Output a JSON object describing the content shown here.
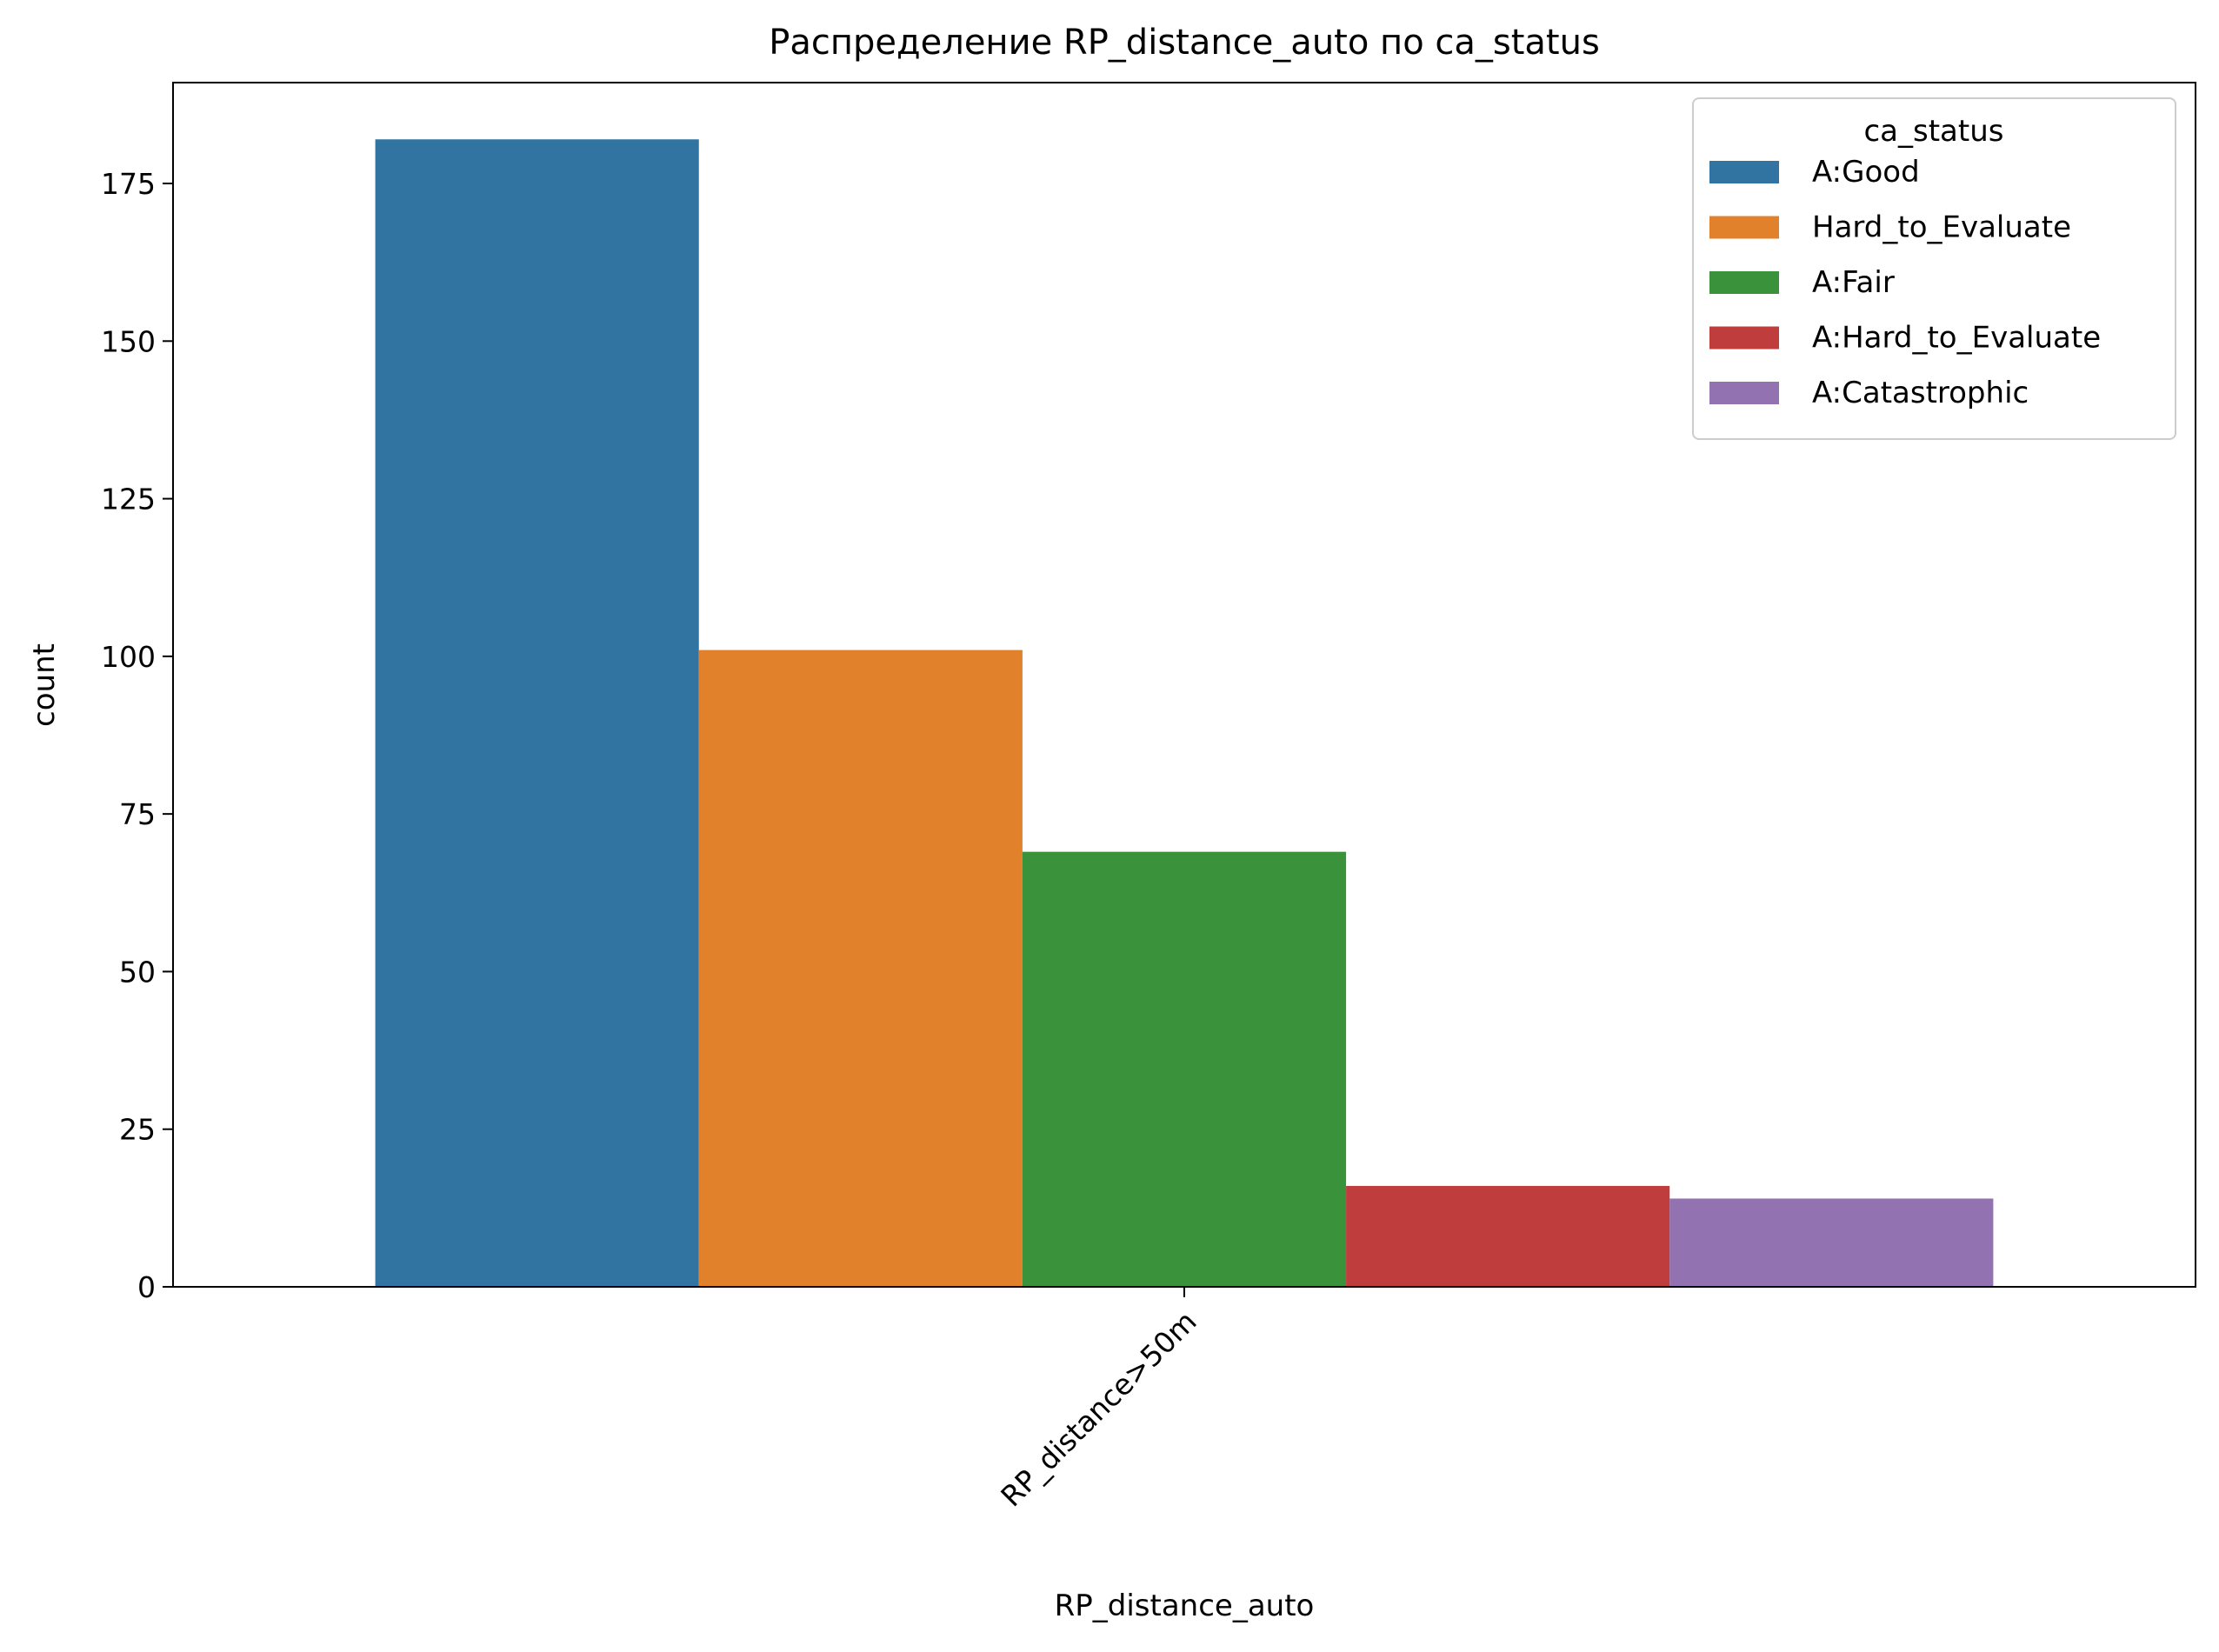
{
  "chart_data": {
    "type": "bar",
    "title": "Распределение RP_distance_auto по ca_status",
    "xlabel": "RP_distance_auto",
    "ylabel": "count",
    "categories": [
      "RP_distance>50m"
    ],
    "ylim": [
      0,
      191
    ],
    "yticks": [
      0,
      25,
      50,
      75,
      100,
      125,
      150,
      175
    ],
    "grid": false,
    "legend": {
      "title": "ca_status",
      "position": "top-right"
    },
    "series": [
      {
        "name": "A:Good",
        "values": [
          182
        ],
        "color": "#3274a1"
      },
      {
        "name": "Hard_to_Evaluate",
        "values": [
          101
        ],
        "color": "#e1812c"
      },
      {
        "name": "A:Fair",
        "values": [
          69
        ],
        "color": "#3a923a"
      },
      {
        "name": "A:Hard_to_Evaluate",
        "values": [
          16
        ],
        "color": "#c03d3e"
      },
      {
        "name": "A:Catastrophic",
        "values": [
          14
        ],
        "color": "#9372b2"
      }
    ]
  }
}
